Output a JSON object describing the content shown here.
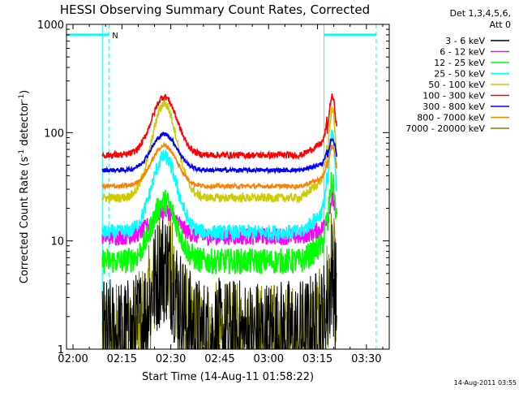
{
  "chart_data": {
    "type": "line",
    "title": "HESSI Observing Summary Count Rates, Corrected",
    "xlabel": "Start Time (14-Aug-11 01:58:22)",
    "ylabel_main": "Corrected Count Rate (s",
    "ylabel_sup1": "-1",
    "ylabel_mid": " detector",
    "ylabel_sup2": "-1",
    "ylabel_end": ")",
    "yscale": "log",
    "ylim": [
      1,
      1000
    ],
    "xlim_minutes": [
      118,
      217
    ],
    "xtick_minutes": [
      120,
      135,
      150,
      165,
      180,
      195,
      210
    ],
    "xtick_labels": [
      "02:00",
      "02:15",
      "02:30",
      "02:45",
      "03:00",
      "03:15",
      "03:30"
    ],
    "ytick_labels": [
      {
        "value": 1,
        "label": "1"
      },
      {
        "value": 10,
        "label": "10"
      },
      {
        "value": 100,
        "label": "100"
      },
      {
        "value": 1000,
        "label": "1000"
      }
    ],
    "legend_header": [
      "Det 1,3,4,5,6,",
      "Att 0"
    ],
    "legend_placement": "right",
    "timestamp": "14-Aug-2011 03:55",
    "night_marker": "N",
    "cyan_accent": "#00ffff",
    "series": [
      {
        "name": "3 - 6 keV",
        "color": "#000000",
        "base": 1.3,
        "peak1": 6,
        "peak2": 5,
        "noise": 0.55,
        "start": 129,
        "end": 201
      },
      {
        "name": "6 - 12 keV",
        "color": "#ff00ff",
        "base": 11,
        "peak1": 19,
        "peak2": 24,
        "noise": 0.08,
        "start": 129,
        "end": 201
      },
      {
        "name": "12 - 25 keV",
        "color": "#00ff00",
        "base": 6.5,
        "peak1": 23,
        "peak2": 35,
        "noise": 0.12,
        "start": 129,
        "end": 201
      },
      {
        "name": "25 - 50 keV",
        "color": "#00ffff",
        "base": 12,
        "peak1": 60,
        "peak2": 95,
        "noise": 0.07,
        "start": 129,
        "end": 201
      },
      {
        "name": "50 - 100 keV",
        "color": "#cccc00",
        "base": 25,
        "peak1": 185,
        "peak2": 165,
        "noise": 0.04,
        "start": 129,
        "end": 201
      },
      {
        "name": "100 - 300 keV",
        "color": "#ff0000",
        "base": 62,
        "peak1": 215,
        "peak2": 215,
        "noise": 0.03,
        "start": 129,
        "end": 201
      },
      {
        "name": "300 - 800 keV",
        "color": "#0000ff",
        "base": 45,
        "peak1": 97,
        "peak2": 88,
        "noise": 0.02,
        "start": 129,
        "end": 201
      },
      {
        "name": "800 - 7000 keV",
        "color": "#ff8000",
        "base": 32,
        "peak1": 76,
        "peak2": 75,
        "noise": 0.02,
        "start": 129,
        "end": 201
      },
      {
        "name": "7000 - 20000 keV",
        "color": "#808000",
        "base": 1.2,
        "peak1": 6,
        "peak2": 5.5,
        "noise": 0.55,
        "start": 129,
        "end": 201
      }
    ]
  }
}
